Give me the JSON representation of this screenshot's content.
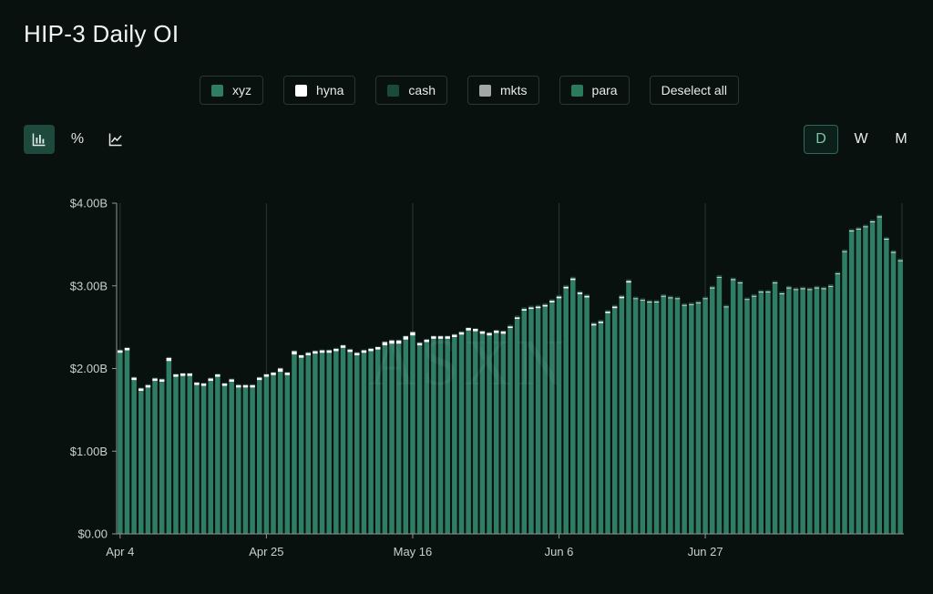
{
  "header": {
    "title": "HIP-3 Daily OI"
  },
  "legend": {
    "items": [
      {
        "label": "xyz",
        "color": "#2e7d64"
      },
      {
        "label": "hyna",
        "color": "#ffffff"
      },
      {
        "label": "cash",
        "color": "#1a4a3c"
      },
      {
        "label": "mkts",
        "color": "#b8bdbb"
      },
      {
        "label": "para",
        "color": "#2a7a5c"
      }
    ],
    "deselect_label": "Deselect all"
  },
  "toolbar": {
    "chart_types": [
      {
        "icon": "bar-chart-icon",
        "active": true
      },
      {
        "icon": "percent-icon",
        "label": "%",
        "active": false
      },
      {
        "icon": "line-chart-icon",
        "active": false
      }
    ],
    "periods": [
      {
        "label": "D",
        "active": true
      },
      {
        "label": "W",
        "active": false
      },
      {
        "label": "M",
        "active": false
      }
    ]
  },
  "watermark": "ASXN",
  "chart_data": {
    "type": "bar",
    "stacked": true,
    "title": "HIP-3 Daily OI",
    "xlabel": "",
    "ylabel": "",
    "ylim": [
      0,
      4.0
    ],
    "y_ticks": [
      0,
      1,
      2,
      3,
      4
    ],
    "y_tick_labels": [
      "$0.00",
      "$1.00B",
      "$2.00B",
      "$3.00B",
      "$4.00B"
    ],
    "x_tick_labels": [
      "Apr 4",
      "Apr 25",
      "May 16",
      "Jun 6",
      "Jun 27"
    ],
    "x_tick_indices": [
      0,
      21,
      42,
      63,
      84
    ],
    "grid": "vertical",
    "legend_position": "top-center",
    "units": "USD billions",
    "series": [
      {
        "name": "xyz",
        "color": "#2e7d64",
        "values": [
          2.19,
          2.22,
          1.86,
          1.73,
          1.77,
          1.85,
          1.84,
          2.09,
          1.9,
          1.91,
          1.91,
          1.8,
          1.79,
          1.85,
          1.9,
          1.79,
          1.84,
          1.77,
          1.77,
          1.77,
          1.86,
          1.9,
          1.92,
          1.96,
          1.92,
          2.17,
          2.13,
          2.16,
          2.18,
          2.19,
          2.19,
          2.21,
          2.25,
          2.2,
          2.16,
          2.19,
          2.21,
          2.23,
          2.28,
          2.3,
          2.3,
          2.35,
          2.4,
          2.28,
          2.32,
          2.36,
          2.36,
          2.36,
          2.38,
          2.41,
          2.46,
          2.45,
          2.42,
          2.4,
          2.43,
          2.42,
          2.49,
          2.6,
          2.7,
          2.72,
          2.73,
          2.75,
          2.8,
          2.85,
          2.97,
          3.07,
          2.9,
          2.86,
          2.52,
          2.55,
          2.67,
          2.73,
          2.85,
          3.04,
          2.84,
          2.82,
          2.8,
          2.8,
          2.87,
          2.85,
          2.84,
          2.76,
          2.77,
          2.79,
          2.84,
          2.97,
          3.1,
          2.74,
          3.07,
          3.03,
          2.83,
          2.87,
          2.92,
          2.92,
          3.03,
          2.9,
          2.97,
          2.95,
          2.96,
          2.95,
          2.97,
          2.96,
          2.99,
          3.14,
          3.41,
          3.66,
          3.68,
          3.71,
          3.77,
          3.83,
          3.56,
          3.4,
          3.3
        ]
      },
      {
        "name": "hyna",
        "color": "#ffffff",
        "values": [
          0.03,
          0.03,
          0.03,
          0.03,
          0.03,
          0.03,
          0.03,
          0.04,
          0.03,
          0.03,
          0.03,
          0.03,
          0.03,
          0.03,
          0.03,
          0.03,
          0.03,
          0.03,
          0.03,
          0.03,
          0.03,
          0.03,
          0.03,
          0.04,
          0.03,
          0.04,
          0.03,
          0.03,
          0.03,
          0.03,
          0.03,
          0.03,
          0.03,
          0.03,
          0.03,
          0.03,
          0.03,
          0.03,
          0.04,
          0.04,
          0.04,
          0.04,
          0.04,
          0.03,
          0.03,
          0.03,
          0.03,
          0.03,
          0.03,
          0.03,
          0.03,
          0.03,
          0.03,
          0.03,
          0.03,
          0.03,
          0.02,
          0.02,
          0.02,
          0.02,
          0.02,
          0.02,
          0.02,
          0.02,
          0.02,
          0.02,
          0.02,
          0.02,
          0.02,
          0.02,
          0.02,
          0.02,
          0.02,
          0.02,
          0.01,
          0.01,
          0.01,
          0.01,
          0.01,
          0.01,
          0.01,
          0.01,
          0.01,
          0.01,
          0.01,
          0.01,
          0.01,
          0.01,
          0.01,
          0.01,
          0.01,
          0.01,
          0.01,
          0.01,
          0.01,
          0.01,
          0.01,
          0.01,
          0.01,
          0.01,
          0.01,
          0.01,
          0.01,
          0.01,
          0.01,
          0.01,
          0.01,
          0.01,
          0.01,
          0.01,
          0.01,
          0.01,
          0.01
        ]
      },
      {
        "name": "cash",
        "color": "#1a4a3c",
        "values": [
          0.01,
          0.01,
          0.01,
          0.01,
          0.01,
          0.01,
          0.01,
          0.01,
          0.01,
          0.01,
          0.01,
          0.01,
          0.01,
          0.01,
          0.01,
          0.01,
          0.01,
          0.01,
          0.01,
          0.01,
          0.01,
          0.01,
          0.01,
          0.01,
          0.01,
          0.01,
          0.01,
          0.01,
          0.01,
          0.01,
          0.01,
          0.01,
          0.01,
          0.01,
          0.01,
          0.01,
          0.01,
          0.01,
          0.01,
          0.01,
          0.01,
          0.01,
          0.01,
          0.01,
          0.01,
          0.01,
          0.01,
          0.01,
          0.01,
          0.01,
          0.01,
          0.01,
          0.01,
          0.01,
          0.01,
          0.01,
          0.02,
          0.02,
          0.02,
          0.02,
          0.02,
          0.02,
          0.02,
          0.02,
          0.02,
          0.02,
          0.02,
          0.02,
          0.02,
          0.02,
          0.02,
          0.02,
          0.02,
          0.02,
          0.02,
          0.02,
          0.02,
          0.02,
          0.02,
          0.02,
          0.02,
          0.02,
          0.02,
          0.02,
          0.02,
          0.02,
          0.02,
          0.02,
          0.02,
          0.02,
          0.02,
          0.02,
          0.02,
          0.02,
          0.02,
          0.02,
          0.02,
          0.02,
          0.02,
          0.02,
          0.02,
          0.02,
          0.02,
          0.02,
          0.02,
          0.02,
          0.02,
          0.02,
          0.02,
          0.02,
          0.02,
          0.02,
          0.02
        ]
      }
    ]
  }
}
